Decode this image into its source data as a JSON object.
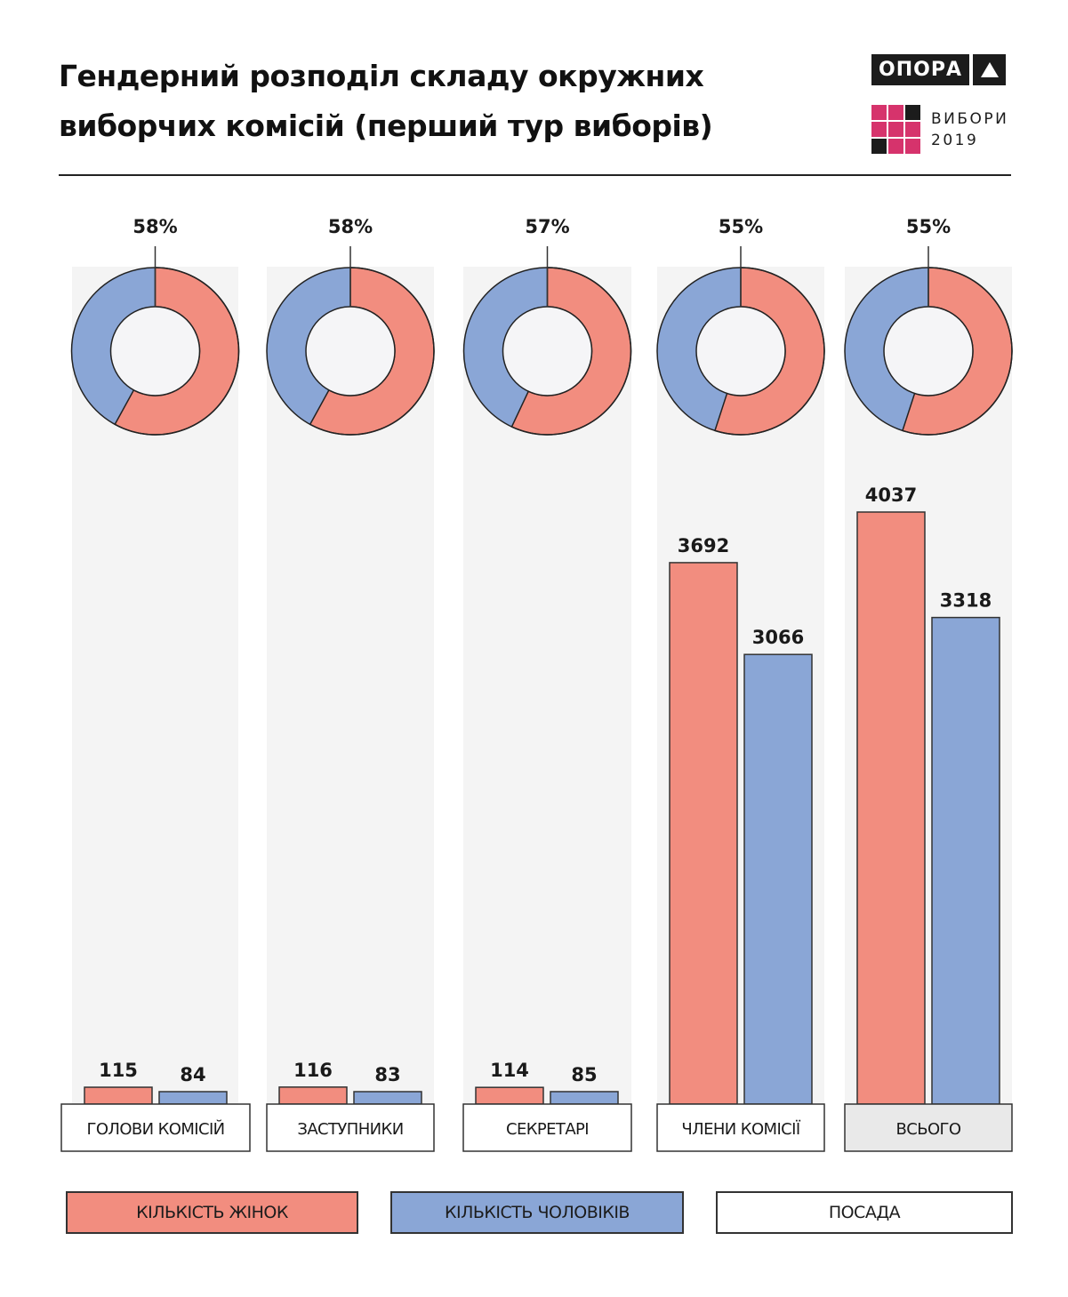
{
  "header": {
    "title_line1": "Гендерний розподіл складу окружних",
    "title_line2": "виборчих комісій (перший тур виборів)",
    "logo_opora": "ОПОРА",
    "logo_vybory_line1": "ВИБОРИ",
    "logo_vybory_line2": "2019"
  },
  "colors": {
    "women": "#f28d7f",
    "men": "#8aa6d6",
    "panel": "#f4f4f4",
    "total_label_bg": "#e9e9e9",
    "logo_pink": "#d6336c",
    "logo_dark": "#1c1c1c"
  },
  "chart_data": {
    "type": "bar",
    "title": "Гендерний розподіл складу окружних виборчих комісій (перший тур виборів)",
    "categories": [
      "ГОЛОВИ КОМІСІЙ",
      "ЗАСТУПНИКИ",
      "СЕКРЕТАРІ",
      "ЧЛЕНИ КОМІСІЇ",
      "ВСЬОГО"
    ],
    "series": [
      {
        "name": "КІЛЬКІСТЬ ЖІНОК",
        "values": [
          115,
          116,
          114,
          3692,
          4037
        ]
      },
      {
        "name": "КІЛЬКІСТЬ ЧОЛОВІКІВ",
        "values": [
          84,
          83,
          85,
          3066,
          3318
        ]
      }
    ],
    "women_share_percent": [
      58,
      58,
      57,
      55,
      55
    ],
    "women_share_labels": [
      "58%",
      "58%",
      "57%",
      "55%",
      "55%"
    ],
    "ylim": [
      0,
      4037
    ],
    "grid": false,
    "legend": {
      "position": "bottom",
      "items": [
        "КІЛЬКІСТЬ ЖІНОК",
        "КІЛЬКІСТЬ ЧОЛОВІКІВ",
        "ПОСАДА"
      ]
    }
  }
}
